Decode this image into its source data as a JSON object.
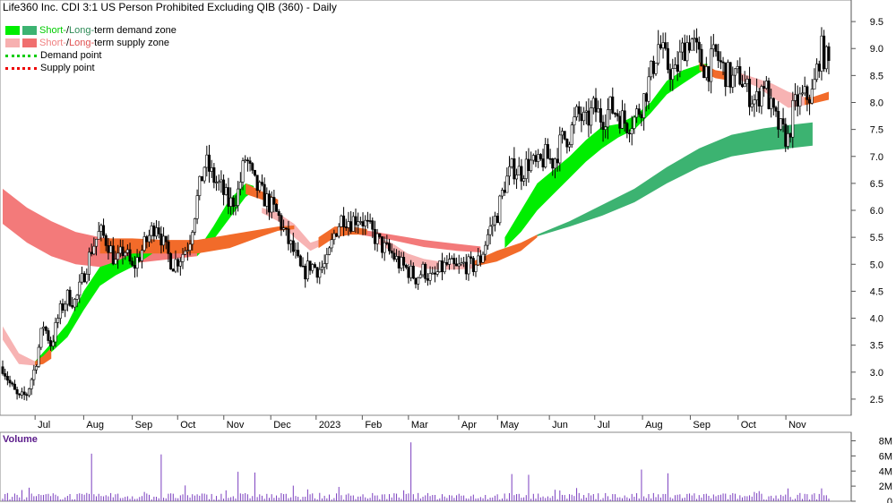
{
  "header": {
    "title": "Life360 Inc. CDI 3:1 US Person Prohibited Excluding QIB (360) - Daily"
  },
  "legend": {
    "items": [
      {
        "kind": "zone",
        "short_word": "Short-",
        "sep": " / ",
        "long_word": "Long-",
        "rest": "term demand zone",
        "short_color": "#00ee00",
        "long_color": "#3cb371",
        "text_short_color": "#00cc00",
        "text_long_color": "#2e8b57"
      },
      {
        "kind": "zone",
        "short_word": "Short-",
        "sep": " / ",
        "long_word": "Long-",
        "rest": "term supply zone",
        "short_color": "#f7b0b0",
        "long_color": "#f07070",
        "text_short_color": "#f08080",
        "text_long_color": "#e05050"
      },
      {
        "kind": "point",
        "label": "Demand point",
        "color": "#00cc00"
      },
      {
        "kind": "point",
        "label": "Supply point",
        "color": "#ee0000"
      }
    ]
  },
  "volume_panel": {
    "title": "Volume"
  },
  "chart_data": {
    "type": "candlestick",
    "price_axis": {
      "ticks": [
        "2.5",
        "3.0",
        "3.5",
        "4.0",
        "4.5",
        "5.0",
        "5.5",
        "6.0",
        "6.5",
        "7.0",
        "7.5",
        "8.0",
        "8.5",
        "9.0",
        "9.5"
      ],
      "ylim": [
        2.2,
        9.9
      ]
    },
    "x_axis": {
      "ticks": [
        {
          "label": "Jul",
          "t": 0.04
        },
        {
          "label": "Aug",
          "t": 0.1
        },
        {
          "label": "Sep",
          "t": 0.16
        },
        {
          "label": "Oct",
          "t": 0.216
        },
        {
          "label": "Nov",
          "t": 0.273
        },
        {
          "label": "Dec",
          "t": 0.331
        },
        {
          "label": "2023",
          "t": 0.387
        },
        {
          "label": "Feb",
          "t": 0.444
        },
        {
          "label": "Mar",
          "t": 0.501
        },
        {
          "label": "Apr",
          "t": 0.563
        },
        {
          "label": "May",
          "t": 0.611
        },
        {
          "label": "Jun",
          "t": 0.675
        },
        {
          "label": "Jul",
          "t": 0.731
        },
        {
          "label": "Aug",
          "t": 0.79
        },
        {
          "label": "Sep",
          "t": 0.849
        },
        {
          "label": "Oct",
          "t": 0.908
        },
        {
          "label": "Nov",
          "t": 0.967
        }
      ]
    },
    "volume_axis": {
      "ticks": [
        "0",
        "2M",
        "4M",
        "6M",
        "8M"
      ],
      "ylim": [
        0,
        8.3
      ]
    },
    "price_path": [
      [
        0.0,
        3.1
      ],
      [
        0.01,
        2.75
      ],
      [
        0.02,
        2.5
      ],
      [
        0.03,
        2.6
      ],
      [
        0.04,
        3.1
      ],
      [
        0.05,
        3.9
      ],
      [
        0.06,
        3.5
      ],
      [
        0.07,
        4.1
      ],
      [
        0.08,
        4.4
      ],
      [
        0.09,
        4.3
      ],
      [
        0.1,
        4.8
      ],
      [
        0.11,
        5.3
      ],
      [
        0.12,
        5.6
      ],
      [
        0.13,
        5.4
      ],
      [
        0.14,
        5.0
      ],
      [
        0.15,
        5.3
      ],
      [
        0.16,
        4.9
      ],
      [
        0.17,
        5.2
      ],
      [
        0.18,
        5.5
      ],
      [
        0.19,
        5.8
      ],
      [
        0.2,
        5.3
      ],
      [
        0.21,
        5.0
      ],
      [
        0.22,
        5.15
      ],
      [
        0.23,
        5.4
      ],
      [
        0.24,
        6.2
      ],
      [
        0.25,
        6.9
      ],
      [
        0.26,
        6.6
      ],
      [
        0.27,
        6.4
      ],
      [
        0.28,
        6.1
      ],
      [
        0.29,
        6.3
      ],
      [
        0.3,
        7.0
      ],
      [
        0.31,
        6.5
      ],
      [
        0.32,
        6.3
      ],
      [
        0.33,
        6.1
      ],
      [
        0.34,
        5.9
      ],
      [
        0.35,
        5.5
      ],
      [
        0.36,
        5.2
      ],
      [
        0.37,
        4.8
      ],
      [
        0.38,
        5.0
      ],
      [
        0.39,
        4.9
      ],
      [
        0.4,
        5.0
      ],
      [
        0.41,
        5.6
      ],
      [
        0.42,
        5.9
      ],
      [
        0.43,
        5.8
      ],
      [
        0.44,
        5.9
      ],
      [
        0.45,
        5.7
      ],
      [
        0.46,
        5.5
      ],
      [
        0.47,
        5.3
      ],
      [
        0.48,
        5.2
      ],
      [
        0.49,
        5.0
      ],
      [
        0.5,
        4.9
      ],
      [
        0.51,
        4.75
      ],
      [
        0.52,
        4.9
      ],
      [
        0.53,
        4.7
      ],
      [
        0.54,
        4.9
      ],
      [
        0.55,
        5.0
      ],
      [
        0.56,
        4.9
      ],
      [
        0.57,
        5.0
      ],
      [
        0.58,
        4.95
      ],
      [
        0.59,
        5.1
      ],
      [
        0.6,
        5.6
      ],
      [
        0.61,
        5.9
      ],
      [
        0.62,
        6.5
      ],
      [
        0.63,
        6.8
      ],
      [
        0.64,
        6.7
      ],
      [
        0.65,
        6.9
      ],
      [
        0.66,
        6.8
      ],
      [
        0.67,
        7.0
      ],
      [
        0.68,
        6.9
      ],
      [
        0.69,
        7.3
      ],
      [
        0.7,
        7.4
      ],
      [
        0.71,
        7.8
      ],
      [
        0.72,
        7.6
      ],
      [
        0.73,
        7.9
      ],
      [
        0.74,
        7.7
      ],
      [
        0.75,
        7.9
      ],
      [
        0.76,
        7.8
      ],
      [
        0.77,
        7.6
      ],
      [
        0.78,
        7.7
      ],
      [
        0.79,
        8.0
      ],
      [
        0.8,
        8.5
      ],
      [
        0.81,
        9.1
      ],
      [
        0.82,
        8.7
      ],
      [
        0.83,
        8.5
      ],
      [
        0.84,
        9.0
      ],
      [
        0.85,
        9.2
      ],
      [
        0.86,
        8.8
      ],
      [
        0.87,
        8.6
      ],
      [
        0.88,
        8.9
      ],
      [
        0.89,
        8.6
      ],
      [
        0.9,
        8.4
      ],
      [
        0.91,
        8.5
      ],
      [
        0.92,
        8.2
      ],
      [
        0.93,
        8.0
      ],
      [
        0.94,
        8.4
      ],
      [
        0.95,
        7.8
      ],
      [
        0.96,
        7.5
      ],
      [
        0.97,
        7.3
      ],
      [
        0.975,
        7.8
      ],
      [
        0.98,
        8.0
      ],
      [
        0.99,
        8.1
      ],
      [
        1.0,
        8.15
      ],
      [
        1.01,
        9.0
      ],
      [
        1.02,
        8.7
      ]
    ],
    "short_demand_zone": [
      [
        [
          0.04,
          3.2
        ],
        [
          0.055,
          3.45
        ],
        [
          0.08,
          3.9
        ],
        [
          0.1,
          4.5
        ],
        [
          0.12,
          4.95
        ],
        [
          0.14,
          5.05
        ],
        [
          0.16,
          5.2
        ],
        [
          0.18,
          5.35
        ],
        [
          0.2,
          5.45
        ]
      ],
      [
        [
          0.04,
          3.15
        ],
        [
          0.055,
          3.3
        ],
        [
          0.08,
          3.65
        ],
        [
          0.1,
          4.15
        ],
        [
          0.12,
          4.6
        ],
        [
          0.14,
          4.8
        ],
        [
          0.16,
          4.95
        ],
        [
          0.18,
          5.15
        ],
        [
          0.2,
          5.35
        ]
      ],
      [
        [
          0.24,
          5.25
        ],
        [
          0.26,
          5.7
        ],
        [
          0.28,
          6.2
        ],
        [
          0.3,
          6.5
        ],
        [
          0.31,
          6.45
        ]
      ],
      [
        [
          0.24,
          5.15
        ],
        [
          0.26,
          5.45
        ],
        [
          0.28,
          5.85
        ],
        [
          0.3,
          6.25
        ],
        [
          0.31,
          6.35
        ]
      ],
      [
        [
          0.62,
          5.5
        ],
        [
          0.64,
          6.0
        ],
        [
          0.66,
          6.5
        ],
        [
          0.68,
          6.75
        ],
        [
          0.7,
          7.0
        ],
        [
          0.72,
          7.3
        ],
        [
          0.74,
          7.55
        ],
        [
          0.76,
          7.6
        ],
        [
          0.78,
          7.75
        ],
        [
          0.8,
          8.0
        ],
        [
          0.82,
          8.4
        ],
        [
          0.84,
          8.6
        ],
        [
          0.86,
          8.7
        ],
        [
          0.87,
          8.72
        ]
      ],
      [
        [
          0.62,
          5.3
        ],
        [
          0.64,
          5.6
        ],
        [
          0.66,
          6.0
        ],
        [
          0.68,
          6.3
        ],
        [
          0.7,
          6.6
        ],
        [
          0.72,
          6.9
        ],
        [
          0.74,
          7.15
        ],
        [
          0.76,
          7.35
        ],
        [
          0.78,
          7.5
        ],
        [
          0.8,
          7.8
        ],
        [
          0.82,
          8.15
        ],
        [
          0.84,
          8.35
        ],
        [
          0.86,
          8.55
        ],
        [
          0.87,
          8.62
        ]
      ]
    ],
    "long_demand_zone": [
      [
        [
          0.66,
          5.55
        ],
        [
          0.7,
          5.8
        ],
        [
          0.74,
          6.1
        ],
        [
          0.78,
          6.4
        ],
        [
          0.82,
          6.8
        ],
        [
          0.86,
          7.15
        ],
        [
          0.9,
          7.4
        ],
        [
          0.94,
          7.52
        ],
        [
          0.97,
          7.58
        ],
        [
          1.0,
          7.63
        ]
      ],
      [
        [
          0.66,
          5.52
        ],
        [
          0.7,
          5.7
        ],
        [
          0.74,
          5.9
        ],
        [
          0.78,
          6.15
        ],
        [
          0.82,
          6.5
        ],
        [
          0.86,
          6.8
        ],
        [
          0.9,
          7.0
        ],
        [
          0.94,
          7.1
        ],
        [
          0.97,
          7.15
        ],
        [
          1.0,
          7.2
        ]
      ]
    ],
    "short_supply_zone": [
      [
        [
          0.0,
          3.85
        ],
        [
          0.02,
          3.35
        ],
        [
          0.04,
          3.2
        ]
      ],
      [
        [
          0.0,
          3.6
        ],
        [
          0.02,
          3.15
        ],
        [
          0.04,
          3.12
        ]
      ],
      [
        [
          0.32,
          6.05
        ],
        [
          0.34,
          5.95
        ],
        [
          0.36,
          5.75
        ],
        [
          0.38,
          5.4
        ],
        [
          0.4,
          5.5
        ]
      ],
      [
        [
          0.32,
          5.95
        ],
        [
          0.34,
          5.8
        ],
        [
          0.36,
          5.5
        ],
        [
          0.38,
          5.25
        ],
        [
          0.4,
          5.4
        ]
      ],
      [
        [
          0.46,
          5.5
        ],
        [
          0.48,
          5.4
        ],
        [
          0.5,
          5.2
        ],
        [
          0.52,
          5.1
        ],
        [
          0.54,
          5.05
        ],
        [
          0.56,
          5.0
        ],
        [
          0.58,
          5.0
        ]
      ],
      [
        [
          0.46,
          5.4
        ],
        [
          0.48,
          5.25
        ],
        [
          0.5,
          5.0
        ],
        [
          0.52,
          4.92
        ],
        [
          0.54,
          4.9
        ],
        [
          0.56,
          4.9
        ],
        [
          0.58,
          4.92
        ]
      ],
      [
        [
          0.91,
          8.55
        ],
        [
          0.93,
          8.45
        ],
        [
          0.95,
          8.35
        ],
        [
          0.97,
          8.2
        ],
        [
          0.99,
          8.1
        ]
      ],
      [
        [
          0.91,
          8.42
        ],
        [
          0.93,
          8.3
        ],
        [
          0.95,
          8.1
        ],
        [
          0.97,
          7.9
        ],
        [
          0.99,
          7.95
        ]
      ]
    ],
    "long_supply_zone": [
      [
        [
          0.0,
          6.4
        ],
        [
          0.03,
          6.05
        ],
        [
          0.06,
          5.8
        ],
        [
          0.09,
          5.6
        ],
        [
          0.12,
          5.5
        ],
        [
          0.15,
          5.45
        ],
        [
          0.18,
          5.42
        ],
        [
          0.21,
          5.42
        ],
        [
          0.24,
          5.42
        ]
      ],
      [
        [
          0.0,
          5.75
        ],
        [
          0.03,
          5.4
        ],
        [
          0.06,
          5.15
        ],
        [
          0.09,
          5.0
        ],
        [
          0.12,
          4.95
        ],
        [
          0.15,
          5.0
        ],
        [
          0.18,
          5.05
        ],
        [
          0.21,
          5.1
        ],
        [
          0.24,
          5.15
        ]
      ],
      [
        [
          0.44,
          5.65
        ],
        [
          0.48,
          5.55
        ],
        [
          0.52,
          5.45
        ],
        [
          0.56,
          5.38
        ],
        [
          0.59,
          5.33
        ]
      ],
      [
        [
          0.44,
          5.55
        ],
        [
          0.48,
          5.45
        ],
        [
          0.52,
          5.32
        ],
        [
          0.56,
          5.25
        ],
        [
          0.59,
          5.22
        ]
      ]
    ],
    "orange_zone": [
      [
        [
          0.04,
          3.2
        ],
        [
          0.05,
          3.3
        ],
        [
          0.06,
          3.45
        ]
      ],
      [
        [
          0.04,
          3.12
        ],
        [
          0.05,
          3.15
        ],
        [
          0.06,
          3.25
        ]
      ],
      [
        [
          0.12,
          5.48
        ],
        [
          0.16,
          5.48
        ],
        [
          0.2,
          5.45
        ],
        [
          0.24,
          5.45
        ],
        [
          0.28,
          5.55
        ],
        [
          0.32,
          5.65
        ],
        [
          0.34,
          5.7
        ],
        [
          0.36,
          5.72
        ]
      ],
      [
        [
          0.12,
          5.2
        ],
        [
          0.16,
          5.2
        ],
        [
          0.2,
          5.2
        ],
        [
          0.24,
          5.2
        ],
        [
          0.28,
          5.3
        ],
        [
          0.32,
          5.52
        ],
        [
          0.34,
          5.62
        ],
        [
          0.36,
          5.65
        ]
      ],
      [
        [
          0.3,
          6.5
        ],
        [
          0.32,
          6.35
        ],
        [
          0.34,
          6.2
        ]
      ],
      [
        [
          0.3,
          6.3
        ],
        [
          0.32,
          6.2
        ],
        [
          0.34,
          6.1
        ]
      ],
      [
        [
          0.39,
          5.5
        ],
        [
          0.41,
          5.7
        ],
        [
          0.43,
          5.7
        ],
        [
          0.45,
          5.65
        ]
      ],
      [
        [
          0.39,
          5.3
        ],
        [
          0.41,
          5.5
        ],
        [
          0.43,
          5.55
        ],
        [
          0.45,
          5.55
        ]
      ],
      [
        [
          0.58,
          5.05
        ],
        [
          0.61,
          5.25
        ],
        [
          0.64,
          5.4
        ],
        [
          0.66,
          5.55
        ]
      ],
      [
        [
          0.58,
          4.95
        ],
        [
          0.61,
          5.05
        ],
        [
          0.64,
          5.25
        ],
        [
          0.66,
          5.5
        ]
      ],
      [
        [
          0.86,
          8.75
        ],
        [
          0.88,
          8.6
        ],
        [
          0.9,
          8.55
        ]
      ],
      [
        [
          0.86,
          8.6
        ],
        [
          0.88,
          8.45
        ],
        [
          0.9,
          8.4
        ]
      ],
      [
        [
          0.99,
          8.1
        ],
        [
          1.0,
          8.1
        ],
        [
          1.02,
          8.2
        ]
      ],
      [
        [
          0.99,
          7.95
        ],
        [
          1.0,
          7.98
        ],
        [
          1.02,
          8.05
        ]
      ]
    ],
    "demand_point_lines": [],
    "supply_point_lines": [],
    "volume_spikes": [
      [
        0.11,
        6.3
      ],
      [
        0.196,
        6.2
      ],
      [
        0.29,
        3.9
      ],
      [
        0.31,
        3.8
      ],
      [
        0.505,
        7.8
      ],
      [
        0.63,
        3.6
      ],
      [
        0.65,
        3.5
      ],
      [
        0.79,
        4.2
      ],
      [
        0.82,
        3.7
      ],
      [
        1.01,
        1.7
      ]
    ]
  }
}
